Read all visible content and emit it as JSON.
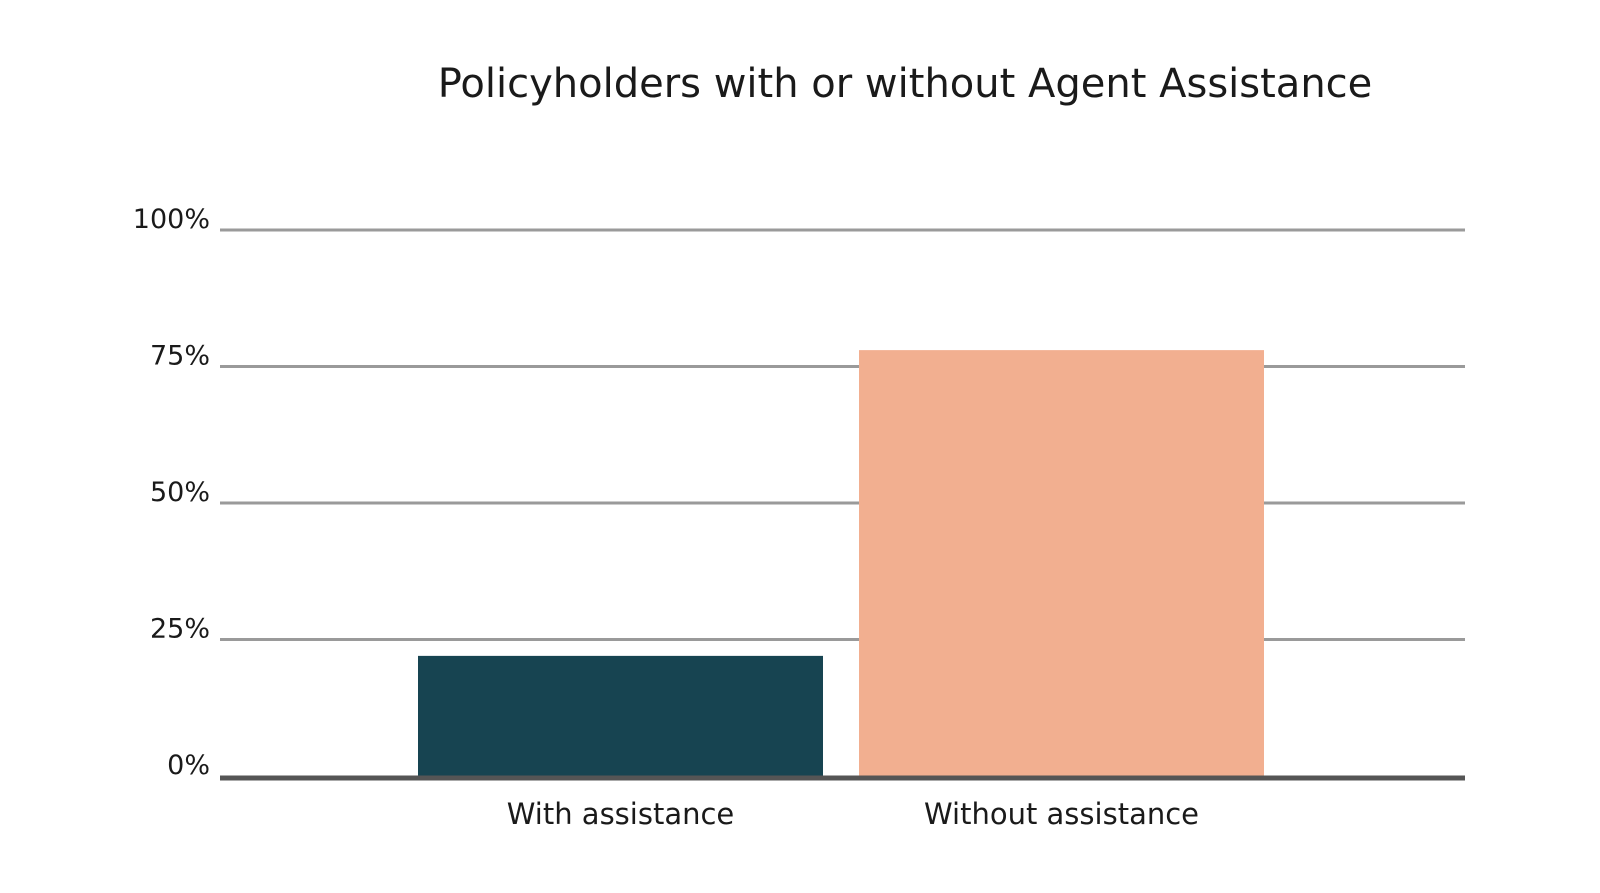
{
  "chart_data": {
    "type": "bar",
    "title": "Policyholders with or without Agent Assistance",
    "categories": [
      "With assistance",
      "Without assistance"
    ],
    "values": [
      22,
      78
    ],
    "colors": [
      "#174451",
      "#F2AF90"
    ],
    "ylim": [
      0,
      100
    ],
    "yticks": [
      0,
      25,
      50,
      75,
      100
    ],
    "ytick_labels": [
      "0%",
      "25%",
      "50%",
      "75%",
      "100%"
    ],
    "grid": true,
    "grid_color": "#9a9a9a",
    "baseline_color": "#555555"
  }
}
